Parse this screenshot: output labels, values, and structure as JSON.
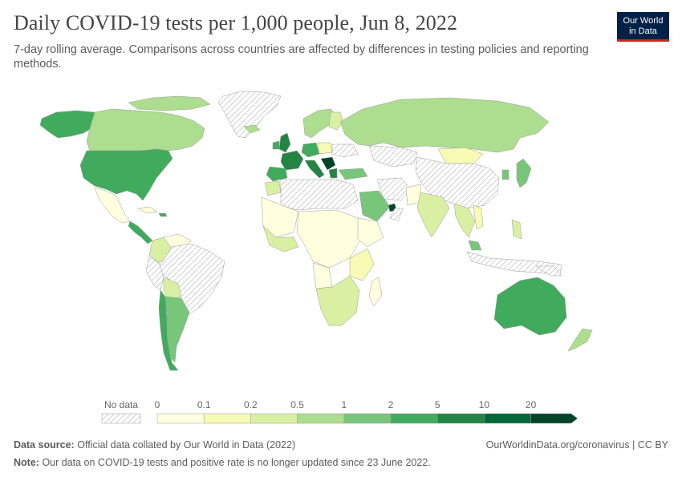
{
  "header": {
    "title": "Daily COVID-19 tests per 1,000 people, Jun 8, 2022",
    "subtitle": "7-day rolling average. Comparisons across countries are affected by differences in testing policies and reporting methods."
  },
  "logo": {
    "line1": "Our World",
    "line2": "in Data"
  },
  "legend": {
    "no_data_label": "No data",
    "ticks": [
      "0",
      "0.1",
      "0.2",
      "0.5",
      "1",
      "2",
      "5",
      "10",
      "20"
    ],
    "bins": [
      {
        "from": "0",
        "to": "0.1",
        "color": "#ffffe0"
      },
      {
        "from": "0.1",
        "to": "0.2",
        "color": "#f7fbb3"
      },
      {
        "from": "0.2",
        "to": "0.5",
        "color": "#d9f0a3"
      },
      {
        "from": "0.5",
        "to": "1",
        "color": "#addd8e"
      },
      {
        "from": "1",
        "to": "2",
        "color": "#78c679"
      },
      {
        "from": "2",
        "to": "5",
        "color": "#41ab5d"
      },
      {
        "from": "5",
        "to": "10",
        "color": "#238443"
      },
      {
        "from": "10",
        "to": "20",
        "color": "#006837"
      },
      {
        "from": "20",
        "to": "",
        "color": "#004529"
      }
    ]
  },
  "footer": {
    "source_label": "Data source:",
    "source_text": "Official data collated by Our World in Data (2022)",
    "note_label": "Note:",
    "note_text": "Our data on COVID-19 tests and positive rate is no longer updated since 23 June 2022.",
    "url_text": "OurWorldinData.org/coronavirus | CC BY"
  }
}
